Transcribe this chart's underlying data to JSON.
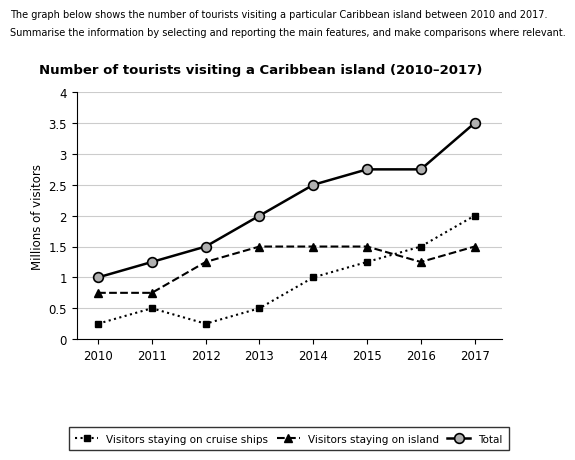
{
  "title": "Number of tourists visiting a Caribbean island (2010–2017)",
  "header_line1": "The graph below shows the number of tourists visiting a particular Caribbean island between 2010 and 2017.",
  "header_line2": "Summarise the information by selecting and reporting the main features, and make comparisons where relevant.",
  "ylabel": "Millions of visitors",
  "years": [
    2010,
    2011,
    2012,
    2013,
    2014,
    2015,
    2016,
    2017
  ],
  "cruise_ships": [
    0.25,
    0.5,
    0.25,
    0.5,
    1.0,
    1.25,
    1.5,
    2.0
  ],
  "on_island": [
    0.75,
    0.75,
    1.25,
    1.5,
    1.5,
    1.5,
    1.25,
    1.5
  ],
  "total": [
    1.0,
    1.25,
    1.5,
    2.0,
    2.5,
    2.75,
    2.75,
    3.5
  ],
  "ylim": [
    0,
    4
  ],
  "yticks": [
    0,
    0.5,
    1.0,
    1.5,
    2.0,
    2.5,
    3.0,
    3.5,
    4.0
  ],
  "background_color": "#ffffff",
  "grid_color": "#cccccc"
}
